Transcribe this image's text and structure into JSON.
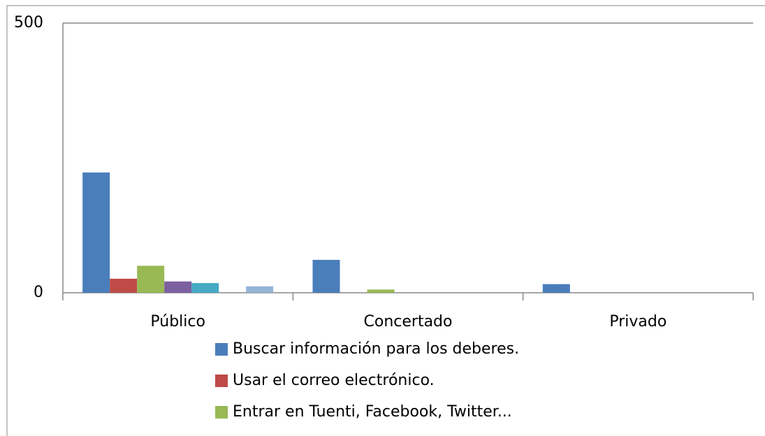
{
  "chart_data": {
    "type": "bar",
    "categories": [
      "Público",
      "Concertado",
      "Privado"
    ],
    "series": [
      {
        "name": "Buscar información para los deberes.",
        "color": "#4a7ebb",
        "values": [
          223,
          61,
          16
        ]
      },
      {
        "name": "Usar el correo electrónico.",
        "color": "#be4b48",
        "values": [
          26,
          0,
          0
        ]
      },
      {
        "name": "Entrar en Tuenti, Facebook, Twitter...",
        "color": "#98b954",
        "values": [
          50,
          6,
          0
        ]
      },
      {
        "color": "#7d60a0",
        "values": [
          21,
          0,
          0
        ]
      },
      {
        "color": "#46aac5",
        "values": [
          18,
          0,
          0
        ]
      },
      {
        "color": "#f59d56",
        "values": [
          0,
          0,
          0
        ]
      },
      {
        "color": "#95b3d7",
        "values": [
          12,
          0,
          0
        ]
      }
    ],
    "ylim": [
      0,
      500
    ],
    "yticks": [
      0,
      500
    ],
    "grid": true
  }
}
